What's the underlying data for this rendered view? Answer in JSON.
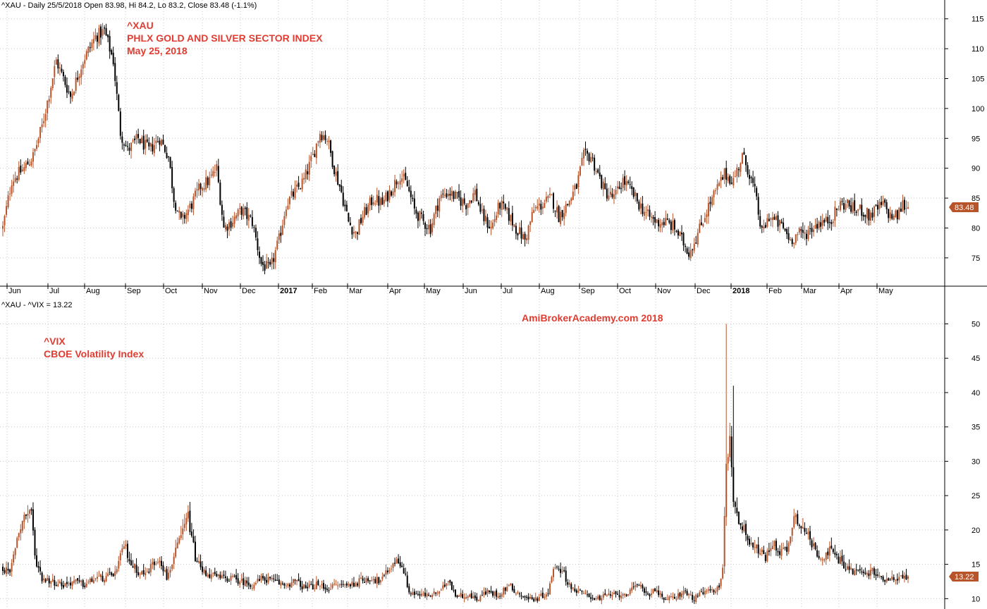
{
  "colors": {
    "up": "#b8542a",
    "down": "#000000",
    "annotation": "#e03c31",
    "badge": "#b8542a",
    "grid": "#c8c8c8"
  },
  "chart_data": [
    {
      "type": "candlestick",
      "pane": "top",
      "header": "^XAU - Daily 25/5/2018 Open 83.98, Hi 84.2, Lo 83.2, Close 83.48 (-1.1%)",
      "annotations": [
        "^XAU",
        "PHLX GOLD AND SILVER SECTOR INDEX",
        "May 25, 2018"
      ],
      "last_price_label": "83.48",
      "last_price": 83.48,
      "ylim": [
        70.5,
        116.5
      ],
      "y_ticks": [
        75,
        80,
        85,
        90,
        95,
        100,
        105,
        110,
        115
      ],
      "grid": true,
      "x_ticks": [
        {
          "label": "Jun",
          "bold": false
        },
        {
          "label": "Jul",
          "bold": false
        },
        {
          "label": "Aug",
          "bold": false
        },
        {
          "label": "Sep",
          "bold": false
        },
        {
          "label": "Oct",
          "bold": false
        },
        {
          "label": "Nov",
          "bold": false
        },
        {
          "label": "Dec",
          "bold": false
        },
        {
          "label": "2017",
          "bold": true
        },
        {
          "label": "Feb",
          "bold": false
        },
        {
          "label": "Mar",
          "bold": false
        },
        {
          "label": "Apr",
          "bold": false
        },
        {
          "label": "May",
          "bold": false
        },
        {
          "label": "Jun",
          "bold": false
        },
        {
          "label": "Jul",
          "bold": false
        },
        {
          "label": "Aug",
          "bold": false
        },
        {
          "label": "Sep",
          "bold": false
        },
        {
          "label": "Oct",
          "bold": false
        },
        {
          "label": "Nov",
          "bold": false
        },
        {
          "label": "Dec",
          "bold": false
        },
        {
          "label": "2018",
          "bold": true
        },
        {
          "label": "Feb",
          "bold": false
        },
        {
          "label": "Mar",
          "bold": false
        },
        {
          "label": "Apr",
          "bold": false
        },
        {
          "label": "May",
          "bold": false
        }
      ],
      "approx_closes": [
        [
          0,
          80
        ],
        [
          5,
          88
        ],
        [
          12,
          90
        ],
        [
          17,
          92
        ],
        [
          22,
          97
        ],
        [
          30,
          108
        ],
        [
          38,
          102
        ],
        [
          45,
          108
        ],
        [
          52,
          112
        ],
        [
          57,
          113
        ],
        [
          62,
          108
        ],
        [
          66,
          96
        ],
        [
          70,
          93
        ],
        [
          76,
          95
        ],
        [
          82,
          93
        ],
        [
          88,
          95
        ],
        [
          93,
          92
        ],
        [
          96,
          85
        ],
        [
          100,
          81
        ],
        [
          106,
          84
        ],
        [
          111,
          87
        ],
        [
          116,
          88
        ],
        [
          120,
          90
        ],
        [
          124,
          80
        ],
        [
          128,
          81
        ],
        [
          134,
          83
        ],
        [
          140,
          81
        ],
        [
          145,
          74
        ],
        [
          150,
          73
        ],
        [
          155,
          78
        ],
        [
          159,
          84
        ],
        [
          164,
          86
        ],
        [
          169,
          88
        ],
        [
          174,
          92
        ],
        [
          178,
          96
        ],
        [
          182,
          95
        ],
        [
          186,
          90
        ],
        [
          190,
          86
        ],
        [
          194,
          81
        ],
        [
          198,
          79
        ],
        [
          202,
          82
        ],
        [
          208,
          85
        ],
        [
          213,
          84
        ],
        [
          219,
          87
        ],
        [
          223,
          89
        ],
        [
          227,
          87
        ],
        [
          231,
          83
        ],
        [
          236,
          81
        ],
        [
          240,
          80
        ],
        [
          245,
          85
        ],
        [
          250,
          86
        ],
        [
          255,
          85
        ],
        [
          260,
          84
        ],
        [
          265,
          86
        ],
        [
          269,
          82
        ],
        [
          274,
          80
        ],
        [
          279,
          84
        ],
        [
          284,
          82
        ],
        [
          288,
          80
        ],
        [
          293,
          78
        ],
        [
          298,
          83
        ],
        [
          303,
          84
        ],
        [
          308,
          85
        ],
        [
          312,
          82
        ],
        [
          317,
          84
        ],
        [
          322,
          87
        ],
        [
          326,
          92
        ],
        [
          330,
          92
        ],
        [
          334,
          89
        ],
        [
          338,
          86
        ],
        [
          343,
          85
        ],
        [
          348,
          88
        ],
        [
          353,
          86
        ],
        [
          357,
          84
        ],
        [
          362,
          82
        ],
        [
          367,
          81
        ],
        [
          372,
          81
        ],
        [
          377,
          80
        ],
        [
          381,
          78
        ],
        [
          385,
          76
        ],
        [
          390,
          79
        ],
        [
          395,
          83
        ],
        [
          400,
          86
        ],
        [
          405,
          89
        ],
        [
          410,
          88
        ],
        [
          415,
          92
        ],
        [
          418,
          90
        ],
        [
          422,
          86
        ],
        [
          426,
          79
        ],
        [
          430,
          82
        ],
        [
          434,
          81
        ],
        [
          438,
          80
        ],
        [
          442,
          78
        ],
        [
          446,
          79
        ],
        [
          450,
          79
        ],
        [
          454,
          80
        ],
        [
          458,
          81
        ],
        [
          462,
          81
        ],
        [
          466,
          82
        ],
        [
          470,
          84
        ],
        [
          474,
          84
        ],
        [
          478,
          83
        ],
        [
          482,
          83
        ],
        [
          486,
          82
        ],
        [
          490,
          83
        ],
        [
          494,
          84
        ],
        [
          498,
          82
        ],
        [
          502,
          82
        ],
        [
          505,
          84
        ],
        [
          508,
          83.48
        ]
      ]
    },
    {
      "type": "candlestick",
      "pane": "bottom",
      "header": "^XAU - ^VIX = 13.22",
      "annotations": [
        "^VIX",
        "CBOE Volatility Index"
      ],
      "watermark": "AmiBrokerAcademy.com   2018",
      "last_price_label": "13.22",
      "last_price": 13.22,
      "ylim": [
        8.7,
        52
      ],
      "y_ticks": [
        10,
        15,
        20,
        25,
        30,
        35,
        40,
        45,
        50
      ],
      "grid": true,
      "approx_closes": [
        [
          0,
          14.5
        ],
        [
          4,
          13.5
        ],
        [
          8,
          19
        ],
        [
          12,
          22
        ],
        [
          16,
          23
        ],
        [
          18,
          16
        ],
        [
          22,
          13
        ],
        [
          28,
          12.5
        ],
        [
          34,
          12
        ],
        [
          40,
          12.5
        ],
        [
          46,
          12
        ],
        [
          52,
          13
        ],
        [
          58,
          13
        ],
        [
          64,
          14
        ],
        [
          68,
          18
        ],
        [
          72,
          15
        ],
        [
          76,
          14
        ],
        [
          80,
          13.5
        ],
        [
          84,
          15
        ],
        [
          88,
          16
        ],
        [
          92,
          13
        ],
        [
          96,
          16
        ],
        [
          100,
          19
        ],
        [
          104,
          22
        ],
        [
          108,
          16
        ],
        [
          112,
          14
        ],
        [
          116,
          13.5
        ],
        [
          122,
          13
        ],
        [
          128,
          13
        ],
        [
          134,
          12.5
        ],
        [
          140,
          12
        ],
        [
          146,
          13
        ],
        [
          152,
          12.5
        ],
        [
          158,
          12
        ],
        [
          164,
          12.5
        ],
        [
          170,
          11.5
        ],
        [
          176,
          12
        ],
        [
          182,
          11.5
        ],
        [
          188,
          12
        ],
        [
          194,
          12
        ],
        [
          200,
          12.5
        ],
        [
          206,
          13
        ],
        [
          212,
          12.5
        ],
        [
          216,
          14
        ],
        [
          220,
          15.5
        ],
        [
          224,
          15
        ],
        [
          228,
          11
        ],
        [
          234,
          10.5
        ],
        [
          240,
          10.5
        ],
        [
          246,
          11
        ],
        [
          250,
          13
        ],
        [
          254,
          10.5
        ],
        [
          260,
          10.5
        ],
        [
          266,
          10
        ],
        [
          272,
          11
        ],
        [
          278,
          10.5
        ],
        [
          284,
          12
        ],
        [
          288,
          11
        ],
        [
          294,
          10
        ],
        [
          300,
          10
        ],
        [
          306,
          11
        ],
        [
          310,
          15
        ],
        [
          314,
          14
        ],
        [
          318,
          12
        ],
        [
          322,
          11
        ],
        [
          328,
          10.5
        ],
        [
          334,
          10
        ],
        [
          340,
          10.5
        ],
        [
          346,
          10.5
        ],
        [
          352,
          11
        ],
        [
          358,
          12
        ],
        [
          362,
          10.5
        ],
        [
          366,
          11.5
        ],
        [
          370,
          10
        ],
        [
          376,
          10
        ],
        [
          382,
          11
        ],
        [
          388,
          10
        ],
        [
          394,
          11
        ],
        [
          398,
          11
        ],
        [
          402,
          12
        ],
        [
          404,
          14
        ],
        [
          406,
          30
        ],
        [
          408,
          33
        ],
        [
          410,
          25
        ],
        [
          412,
          22
        ],
        [
          416,
          20
        ],
        [
          420,
          18
        ],
        [
          424,
          17
        ],
        [
          428,
          16
        ],
        [
          432,
          18
        ],
        [
          436,
          17
        ],
        [
          440,
          17
        ],
        [
          444,
          22
        ],
        [
          448,
          21
        ],
        [
          452,
          19
        ],
        [
          456,
          17
        ],
        [
          460,
          16
        ],
        [
          464,
          17
        ],
        [
          468,
          16
        ],
        [
          472,
          15
        ],
        [
          476,
          14
        ],
        [
          480,
          14
        ],
        [
          484,
          13.5
        ],
        [
          488,
          14
        ],
        [
          492,
          13
        ],
        [
          496,
          13
        ],
        [
          500,
          13
        ],
        [
          504,
          13
        ],
        [
          508,
          13.22
        ]
      ]
    }
  ]
}
